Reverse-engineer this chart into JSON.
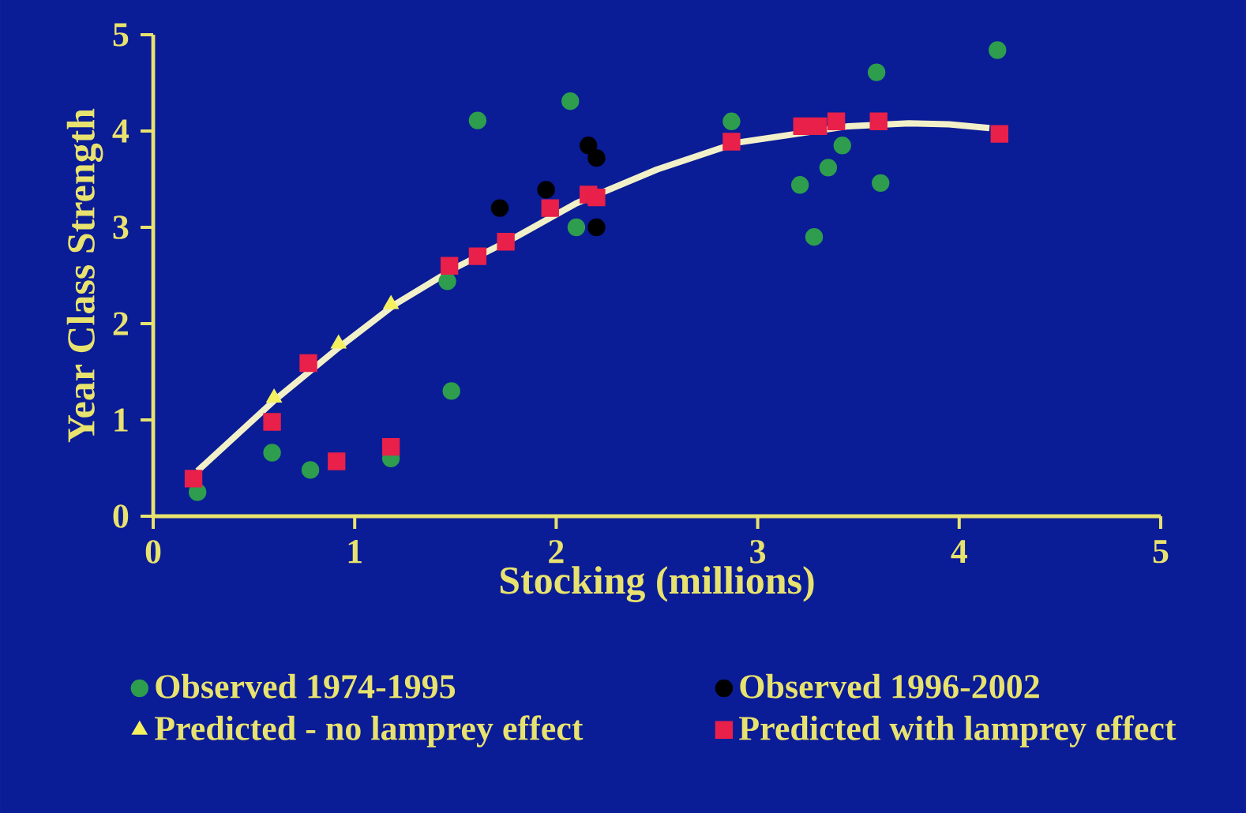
{
  "chart_data": {
    "type": "scatter",
    "xlabel": "Stocking (millions)",
    "ylabel": "Year Class Strength",
    "xlim": [
      0,
      5
    ],
    "ylim": [
      0,
      5
    ],
    "xticks": [
      0,
      1,
      2,
      3,
      4,
      5
    ],
    "yticks": [
      0,
      1,
      2,
      3,
      4,
      5
    ],
    "grid": false,
    "legend": "bottom",
    "series": [
      {
        "name": "Observed 1974-1995",
        "color": "#2e9e4e",
        "marker": "circle",
        "x": [
          0.22,
          0.59,
          0.78,
          1.18,
          1.48,
          1.46,
          1.61,
          2.07,
          2.1,
          2.87,
          3.59,
          4.19,
          3.42,
          3.35,
          3.21,
          3.61,
          3.28
        ],
        "values": [
          0.25,
          0.66,
          0.48,
          0.6,
          1.3,
          2.44,
          4.11,
          4.31,
          3.0,
          4.1,
          4.61,
          4.84,
          3.85,
          3.62,
          3.44,
          3.46,
          2.9
        ]
      },
      {
        "name": "Observed 1996-2002",
        "color": "#000000",
        "marker": "circle",
        "x": [
          1.72,
          1.95,
          2.16,
          2.2,
          2.2
        ],
        "values": [
          3.2,
          3.39,
          3.85,
          3.72,
          3.0
        ]
      },
      {
        "name": "Predicted - no lamprey effect",
        "color": "#f4f060",
        "marker": "triangle",
        "x": [
          0.6,
          0.92,
          1.18
        ],
        "values": [
          1.23,
          1.79,
          2.2
        ]
      },
      {
        "name": "Predicted with lamprey effect",
        "color": "#e8204a",
        "marker": "square",
        "x": [
          0.2,
          0.59,
          0.91,
          1.18,
          0.77,
          1.47,
          1.61,
          1.75,
          1.97,
          2.16,
          2.2,
          2.87,
          3.22,
          3.3,
          3.39,
          3.6,
          4.2
        ],
        "values": [
          0.39,
          0.98,
          0.57,
          0.72,
          1.59,
          2.6,
          2.7,
          2.85,
          3.2,
          3.34,
          3.31,
          3.89,
          4.05,
          4.05,
          4.1,
          4.1,
          3.97
        ]
      },
      {
        "type": "line",
        "color": "#f2f0c8",
        "marker": "none",
        "x": [
          0.22,
          0.6,
          0.92,
          1.2,
          1.5,
          1.8,
          2.1,
          2.5,
          2.9,
          3.45,
          3.75,
          3.95,
          4.15
        ],
        "values": [
          0.47,
          1.2,
          1.75,
          2.2,
          2.58,
          2.9,
          3.25,
          3.6,
          3.88,
          4.05,
          4.08,
          4.07,
          4.03
        ]
      }
    ]
  }
}
